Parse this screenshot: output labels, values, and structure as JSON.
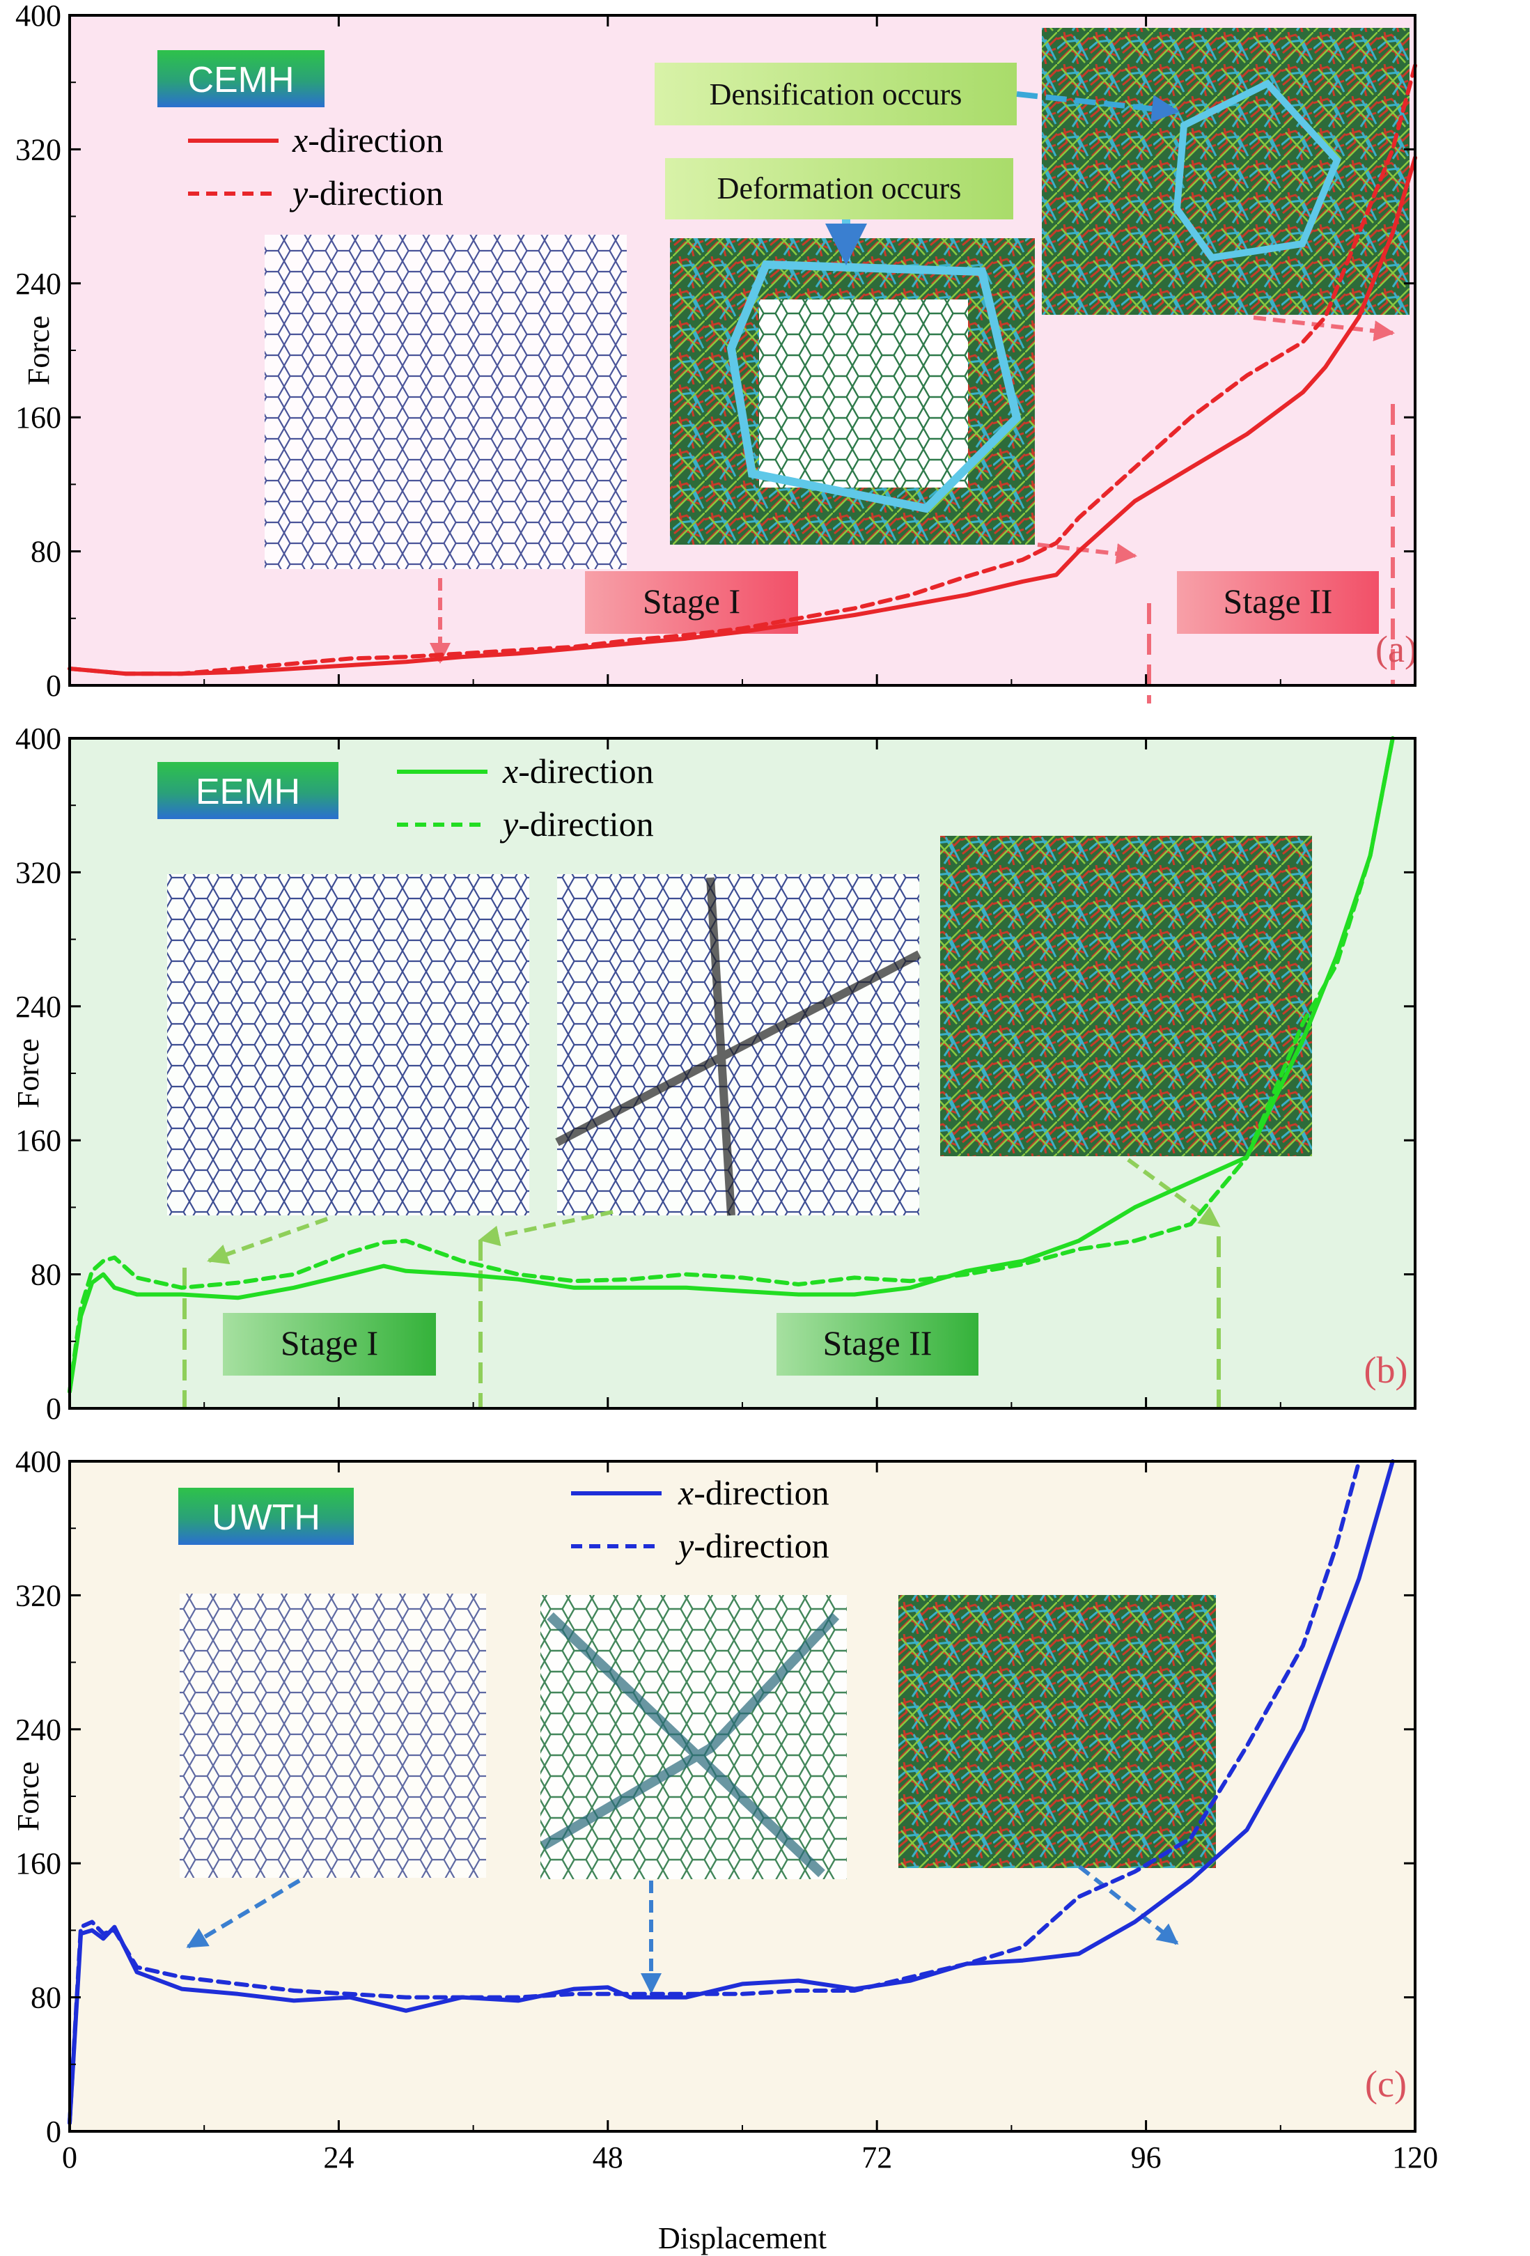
{
  "chart_data": [
    {
      "type": "line",
      "panel_label": "(a)",
      "material": "CEMH",
      "ylabel": "Force",
      "xlabel": "Displacement",
      "xlim": [
        0,
        120
      ],
      "ylim": [
        0,
        400
      ],
      "yticks": [
        "0",
        "80",
        "160",
        "240",
        "320",
        "400"
      ],
      "xticks": [
        "0",
        "24",
        "48",
        "72",
        "96",
        "120"
      ],
      "background": "#fce4f0",
      "color": "#e8262a",
      "series": [
        {
          "name": "x-direction",
          "style": "solid",
          "x": [
            0,
            5,
            10,
            15,
            20,
            25,
            30,
            35,
            40,
            45,
            50,
            55,
            60,
            65,
            70,
            75,
            80,
            85,
            88,
            90,
            95,
            100,
            105,
            110,
            112,
            115,
            118,
            120
          ],
          "y": [
            10,
            7,
            7,
            8,
            10,
            12,
            14,
            17,
            19,
            22,
            25,
            28,
            32,
            37,
            42,
            48,
            54,
            62,
            66,
            80,
            110,
            130,
            150,
            175,
            190,
            220,
            270,
            315
          ]
        },
        {
          "name": "y-direction",
          "style": "dashed",
          "x": [
            0,
            5,
            10,
            15,
            20,
            25,
            30,
            35,
            40,
            45,
            50,
            55,
            60,
            65,
            70,
            75,
            80,
            85,
            88,
            90,
            95,
            100,
            105,
            110,
            112,
            115,
            118,
            120
          ],
          "y": [
            10,
            7,
            7,
            10,
            13,
            16,
            17,
            19,
            21,
            23,
            27,
            30,
            34,
            40,
            46,
            54,
            65,
            75,
            85,
            100,
            130,
            160,
            185,
            205,
            220,
            270,
            320,
            370
          ]
        }
      ],
      "stages": [
        "Stage I",
        "Stage II"
      ],
      "annotations": [
        "Deformation occurs",
        "Densification occurs"
      ]
    },
    {
      "type": "line",
      "panel_label": "(b)",
      "material": "EEMH",
      "ylabel": "Force",
      "xlim": [
        0,
        120
      ],
      "ylim": [
        0,
        400
      ],
      "yticks": [
        "0",
        "80",
        "160",
        "240",
        "320",
        "400"
      ],
      "xticks": [
        "0",
        "24",
        "48",
        "72",
        "96",
        "120"
      ],
      "background": "#e3f4e3",
      "color": "#22dd22",
      "series": [
        {
          "name": "x-direction",
          "style": "solid",
          "x": [
            0,
            1,
            2,
            3,
            4,
            6,
            10,
            15,
            20,
            25,
            28,
            30,
            35,
            40,
            45,
            50,
            55,
            60,
            65,
            70,
            75,
            80,
            85,
            90,
            95,
            100,
            105,
            110,
            113,
            116,
            118
          ],
          "y": [
            10,
            55,
            75,
            80,
            72,
            68,
            68,
            66,
            72,
            80,
            85,
            82,
            80,
            77,
            72,
            72,
            72,
            70,
            68,
            68,
            72,
            82,
            88,
            100,
            120,
            135,
            150,
            220,
            270,
            330,
            400
          ]
        },
        {
          "name": "y-direction",
          "style": "dashed",
          "x": [
            0,
            1,
            2,
            3,
            4,
            6,
            10,
            15,
            20,
            25,
            28,
            30,
            35,
            40,
            45,
            50,
            55,
            60,
            65,
            70,
            75,
            80,
            85,
            90,
            95,
            100,
            105,
            110,
            113,
            116,
            118
          ],
          "y": [
            10,
            60,
            82,
            88,
            90,
            78,
            72,
            75,
            80,
            93,
            99,
            100,
            88,
            80,
            76,
            77,
            80,
            78,
            74,
            78,
            76,
            80,
            86,
            95,
            100,
            110,
            150,
            230,
            265,
            330,
            400
          ]
        }
      ],
      "stages": [
        "Stage I",
        "Stage II"
      ]
    },
    {
      "type": "line",
      "panel_label": "(c)",
      "material": "UWTH",
      "ylabel": "Force",
      "xlabel": "Displacement",
      "xlim": [
        0,
        120
      ],
      "ylim": [
        0,
        400
      ],
      "yticks": [
        "0",
        "80",
        "160",
        "240",
        "320",
        "400"
      ],
      "xticks": [
        "0",
        "24",
        "48",
        "72",
        "96",
        "120"
      ],
      "background": "#faf5e8",
      "color": "#1e2ed8",
      "series": [
        {
          "name": "x-direction",
          "style": "solid",
          "x": [
            0,
            1,
            2,
            3,
            4,
            6,
            10,
            15,
            20,
            25,
            30,
            35,
            40,
            45,
            48,
            50,
            55,
            60,
            65,
            70,
            75,
            80,
            85,
            90,
            95,
            100,
            105,
            110,
            115,
            118
          ],
          "y": [
            5,
            118,
            120,
            115,
            122,
            95,
            85,
            82,
            78,
            80,
            72,
            80,
            78,
            85,
            86,
            80,
            80,
            88,
            90,
            85,
            90,
            100,
            102,
            106,
            125,
            150,
            180,
            240,
            330,
            400
          ]
        },
        {
          "name": "y-direction",
          "style": "dashed",
          "x": [
            0,
            1,
            2,
            3,
            4,
            6,
            10,
            15,
            20,
            25,
            30,
            35,
            40,
            45,
            48,
            50,
            55,
            60,
            65,
            70,
            75,
            80,
            85,
            90,
            95,
            100,
            105,
            110,
            113,
            115
          ],
          "y": [
            5,
            122,
            125,
            118,
            120,
            98,
            92,
            88,
            84,
            82,
            80,
            80,
            80,
            82,
            82,
            82,
            82,
            82,
            84,
            84,
            92,
            100,
            110,
            140,
            155,
            175,
            230,
            290,
            350,
            400
          ]
        }
      ]
    }
  ],
  "legend": {
    "x_label": "-direction",
    "y_label": "-direction",
    "x_var": "x",
    "y_var": "y"
  }
}
